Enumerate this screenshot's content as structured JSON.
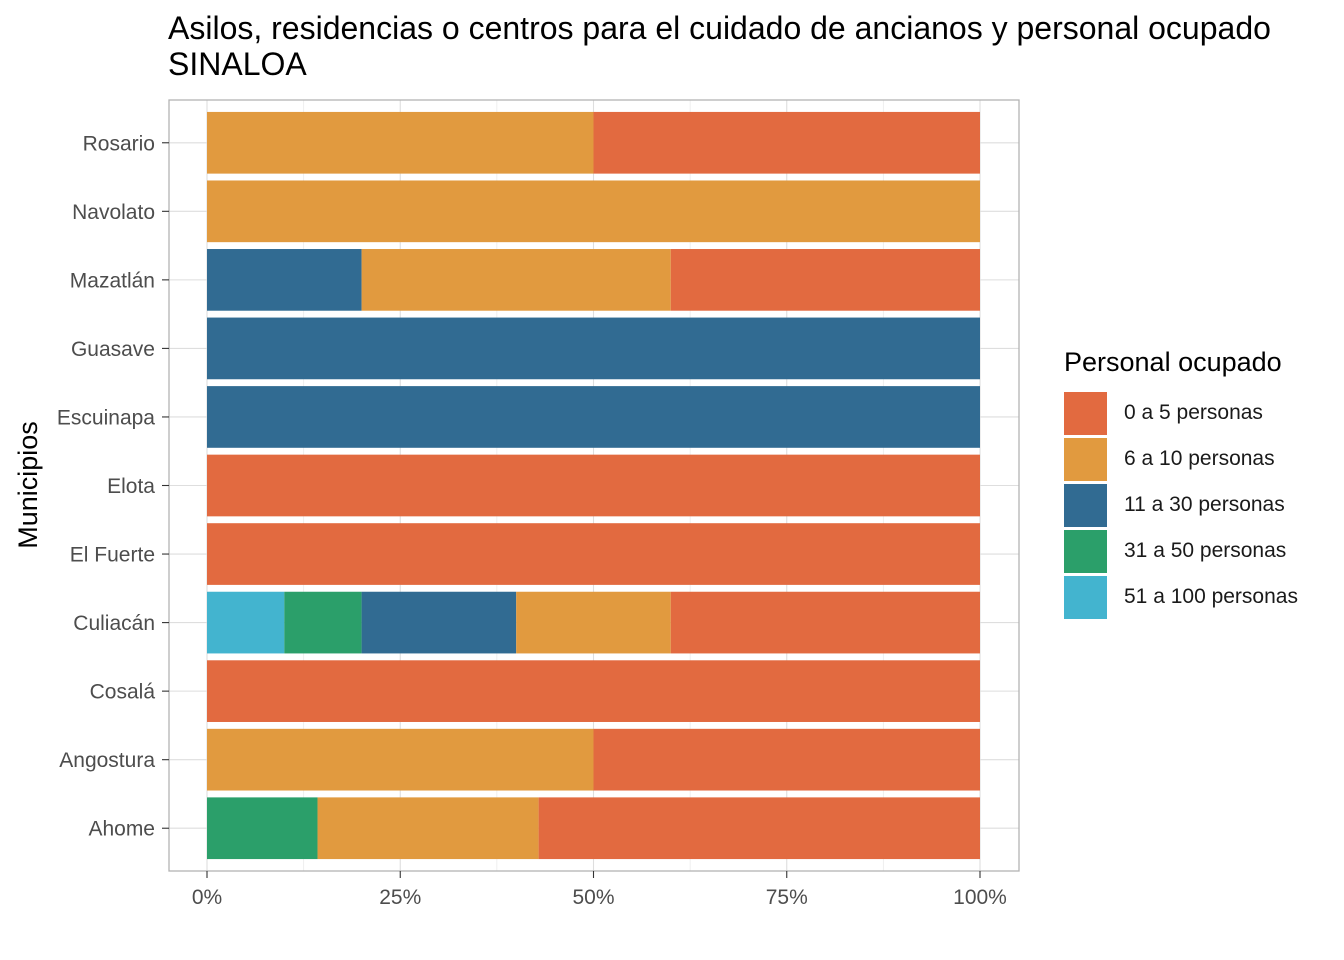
{
  "title_lines": [
    "Asilos, residencias o centros para el cuidado de ancianos y personal ocupado",
    "SINALOA"
  ],
  "chart_data": {
    "type": "bar",
    "orientation": "horizontal",
    "stacked": "percent",
    "title": "Asilos, residencias o centros para el cuidado de ancianos y personal ocupado SINALOA",
    "xlabel": "",
    "ylabel": "Municipios",
    "xlim": [
      0,
      100
    ],
    "x_ticks": [
      "0%",
      "25%",
      "50%",
      "75%",
      "100%"
    ],
    "x_tick_values": [
      0,
      25,
      50,
      75,
      100
    ],
    "grid": true,
    "legend_position": "right",
    "legend_title": "Personal ocupado",
    "categories": [
      "Ahome",
      "Angostura",
      "Cosalá",
      "Culiacán",
      "El Fuerte",
      "Elota",
      "Escuinapa",
      "Guasave",
      "Mazatlán",
      "Navolato",
      "Rosario"
    ],
    "series": [
      {
        "name": "51 a 100 personas",
        "color": "#43b4cf",
        "values": [
          0,
          0,
          0,
          10,
          0,
          0,
          0,
          0,
          0,
          0,
          0
        ]
      },
      {
        "name": "31 a 50 personas",
        "color": "#2b9f6a",
        "values": [
          14.3,
          0,
          0,
          10,
          0,
          0,
          0,
          0,
          0,
          0,
          0
        ]
      },
      {
        "name": "11 a 30 personas",
        "color": "#316b92",
        "values": [
          0,
          0,
          0,
          20,
          0,
          0,
          100,
          100,
          20,
          0,
          0
        ]
      },
      {
        "name": "6 a 10 personas",
        "color": "#e19a3f",
        "values": [
          28.6,
          50,
          0,
          20,
          0,
          0,
          0,
          0,
          40,
          100,
          50
        ]
      },
      {
        "name": "0 a 5 personas",
        "color": "#e26a40",
        "values": [
          57.1,
          50,
          100,
          40,
          100,
          100,
          0,
          0,
          40,
          0,
          50
        ]
      }
    ],
    "legend_order": [
      "0 a 5 personas",
      "6 a 10 personas",
      "11 a 30 personas",
      "31 a 50 personas",
      "51 a 100 personas"
    ]
  }
}
